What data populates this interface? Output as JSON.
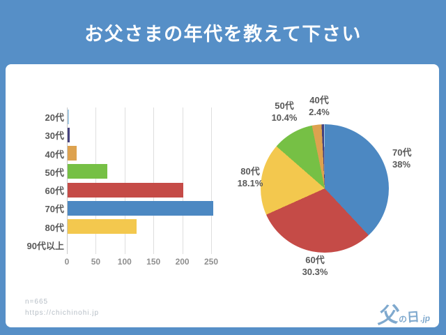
{
  "title": "お父さまの年代を教えて下さい",
  "footer": {
    "sample_size": "n=665",
    "url": "https://chichinohi.jp",
    "logo_text": "父の日.jp"
  },
  "colors": {
    "background": "#568fc7",
    "card": "#ffffff",
    "title_text": "#ffffff",
    "grid": "#dedede",
    "tick_text": "#8f8f8f",
    "label_text": "#595959",
    "footer_text": "#b6bec6",
    "logo_blue": "#7fa9ce"
  },
  "chart_data": [
    {
      "type": "bar",
      "orientation": "horizontal",
      "title": "",
      "categories": [
        "20代",
        "30代",
        "40代",
        "50代",
        "60代",
        "70代",
        "80代",
        "90代以上"
      ],
      "values": [
        2,
        4,
        16,
        69,
        201,
        253,
        120,
        0
      ],
      "colors": [
        "#a8cce4",
        "#45417e",
        "#dda24f",
        "#76c045",
        "#c54b47",
        "#4c88c2",
        "#f3c84e",
        "#cccccc"
      ],
      "xticks": [
        0,
        50,
        100,
        150,
        200,
        250
      ],
      "xlim": [
        0,
        250
      ],
      "grid": true,
      "legend": false
    },
    {
      "type": "pie",
      "start_angle": "top",
      "direction": "clockwise",
      "legend": false,
      "slices": [
        {
          "label": "70代",
          "value_pct": 38,
          "pct_text": "38%",
          "color": "#4c88c2",
          "show_label": true
        },
        {
          "label": "60代",
          "value_pct": 30.3,
          "pct_text": "30.3%",
          "color": "#c54b47",
          "show_label": true
        },
        {
          "label": "80代",
          "value_pct": 18.1,
          "pct_text": "18.1%",
          "color": "#f3c84e",
          "show_label": true
        },
        {
          "label": "50代",
          "value_pct": 10.4,
          "pct_text": "10.4%",
          "color": "#76c045",
          "show_label": true
        },
        {
          "label": "40代",
          "value_pct": 2.4,
          "pct_text": "2.4%",
          "color": "#dda24f",
          "show_label": true
        },
        {
          "label": "30代",
          "value_pct": 0.6,
          "pct_text": "",
          "color": "#45417e",
          "show_label": false
        },
        {
          "label": "20代",
          "value_pct": 0.3,
          "pct_text": "",
          "color": "#a8cce4",
          "show_label": false
        }
      ]
    }
  ]
}
